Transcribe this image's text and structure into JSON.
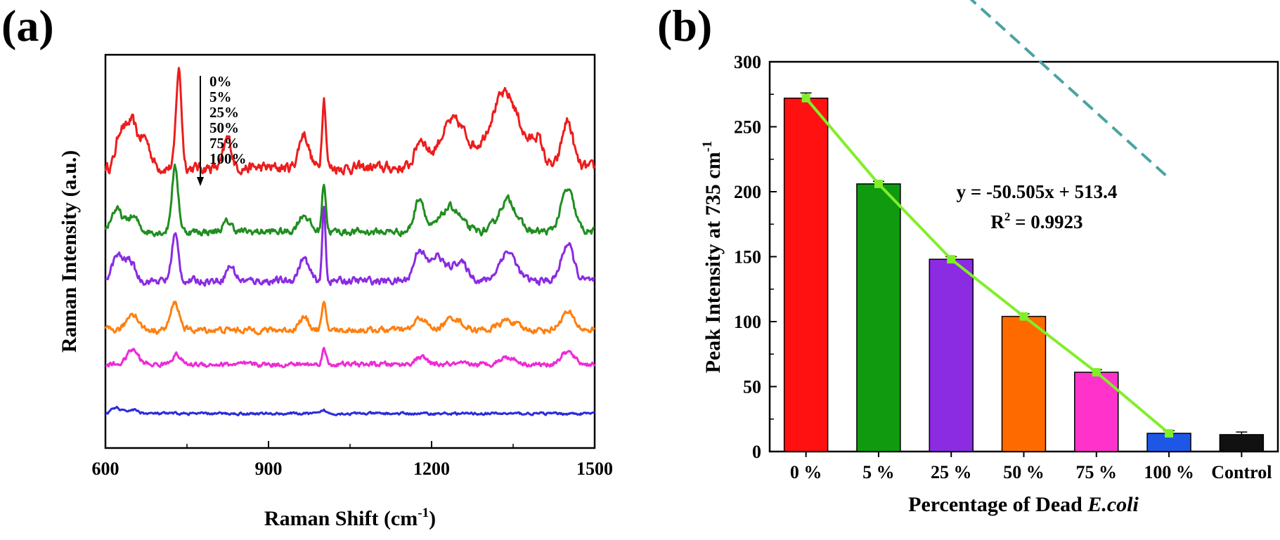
{
  "panel_a": {
    "label": "(a)",
    "xlabel_prefix": "Raman Shift (cm",
    "xlabel_sup": "-1",
    "xlabel_suffix": ")",
    "ylabel": "Raman Intensity (a.u.)",
    "legend_entries": [
      "0%",
      "5%",
      "25%",
      "50%",
      "75%",
      "100%"
    ]
  },
  "panel_b": {
    "label": "(b)",
    "ylabel_prefix": "Peak Intensity at 735 cm",
    "ylabel_sup": "-1",
    "xlabel_prefix": "Percentage of Dead ",
    "xlabel_italic": "E.coli",
    "equation": "y = -50.505x + 513.4",
    "r2_prefix": "R",
    "r2_sup": "2",
    "r2_suffix": " = 0.9923"
  },
  "chart_data": [
    {
      "type": "line",
      "title": "",
      "xlabel": "Raman Shift (cm-1)",
      "ylabel": "Raman Intensity (a.u.)",
      "xlim": [
        600,
        1500
      ],
      "xticks": [
        600,
        900,
        1200,
        1500
      ],
      "yticks": [],
      "legend": "top-center",
      "series": [
        {
          "name": "0%",
          "color": "#ee1c1c",
          "baseline": 5.3,
          "noise_amp": 0.18,
          "peaks": [
            [
              628,
              0.75,
              8
            ],
            [
              648,
              0.9,
              9
            ],
            [
              672,
              0.6,
              10
            ],
            [
              735,
              2.0,
              5
            ],
            [
              825,
              0.6,
              7
            ],
            [
              965,
              0.7,
              9
            ],
            [
              1002,
              1.45,
              3.5
            ],
            [
              1180,
              0.55,
              10
            ],
            [
              1240,
              0.95,
              25
            ],
            [
              1335,
              1.5,
              28
            ],
            [
              1395,
              0.5,
              10
            ],
            [
              1450,
              0.95,
              10
            ]
          ]
        },
        {
          "name": "5%",
          "color": "#1f8e1f",
          "baseline": 4.0,
          "noise_amp": 0.12,
          "peaks": [
            [
              620,
              0.45,
              10
            ],
            [
              650,
              0.3,
              10
            ],
            [
              728,
              1.3,
              6
            ],
            [
              825,
              0.2,
              8
            ],
            [
              965,
              0.35,
              10
            ],
            [
              1002,
              1.0,
              3.5
            ],
            [
              1178,
              0.7,
              9
            ],
            [
              1235,
              0.5,
              18
            ],
            [
              1340,
              0.65,
              16
            ],
            [
              1450,
              0.85,
              12
            ]
          ]
        },
        {
          "name": "25%",
          "color": "#8a2be2",
          "baseline": 3.0,
          "noise_amp": 0.12,
          "peaks": [
            [
              622,
              0.5,
              10
            ],
            [
              645,
              0.4,
              9
            ],
            [
              728,
              0.95,
              6
            ],
            [
              830,
              0.3,
              8
            ],
            [
              965,
              0.45,
              9
            ],
            [
              1002,
              1.5,
              3
            ],
            [
              1178,
              0.65,
              10
            ],
            [
              1210,
              0.5,
              12
            ],
            [
              1250,
              0.4,
              15
            ],
            [
              1340,
              0.6,
              15
            ],
            [
              1450,
              0.75,
              11
            ]
          ]
        },
        {
          "name": "50%",
          "color": "#ff7f0e",
          "baseline": 2.0,
          "noise_amp": 0.1,
          "peaks": [
            [
              650,
              0.35,
              10
            ],
            [
              728,
              0.55,
              8
            ],
            [
              965,
              0.25,
              9
            ],
            [
              1002,
              0.5,
              4
            ],
            [
              1180,
              0.25,
              10
            ],
            [
              1240,
              0.25,
              15
            ],
            [
              1340,
              0.2,
              15
            ],
            [
              1450,
              0.35,
              12
            ]
          ]
        },
        {
          "name": "75%",
          "color": "#ee2bd6",
          "baseline": 1.3,
          "noise_amp": 0.08,
          "peaks": [
            [
              650,
              0.3,
              10
            ],
            [
              730,
              0.2,
              8
            ],
            [
              1002,
              0.3,
              4
            ],
            [
              1180,
              0.15,
              10
            ],
            [
              1340,
              0.15,
              15
            ],
            [
              1450,
              0.25,
              12
            ]
          ]
        },
        {
          "name": "100%",
          "color": "#2b2bde",
          "baseline": 0.3,
          "noise_amp": 0.04,
          "peaks": [
            [
              620,
              0.12,
              8
            ],
            [
              650,
              0.08,
              10
            ],
            [
              1002,
              0.07,
              4
            ]
          ]
        }
      ]
    },
    {
      "type": "bar",
      "title": "",
      "xlabel": "Percentage of Dead E.coli",
      "ylabel": "Peak Intensity at 735 cm-1",
      "ylim": [
        0,
        300
      ],
      "yticks": [
        0,
        50,
        100,
        150,
        200,
        250,
        300
      ],
      "categories": [
        "0 %",
        "5 %",
        "25 %",
        "50 %",
        "75 %",
        "100 %",
        "Control"
      ],
      "values": [
        272,
        206,
        148,
        104,
        61,
        14,
        13
      ],
      "errors": [
        4,
        2,
        2,
        2,
        2,
        2,
        2
      ],
      "colors": [
        "#ff1111",
        "#0f9a0f",
        "#8b2be2",
        "#ff6a00",
        "#ff33cc",
        "#1e56e6",
        "#111111"
      ],
      "fit": {
        "slope": -50.505,
        "intercept": 513.4,
        "r2": 0.9923,
        "line_color": "#4aa3a3",
        "x_index_range": [
          1,
          6
        ],
        "points_color": "#7fef2a"
      }
    }
  ]
}
